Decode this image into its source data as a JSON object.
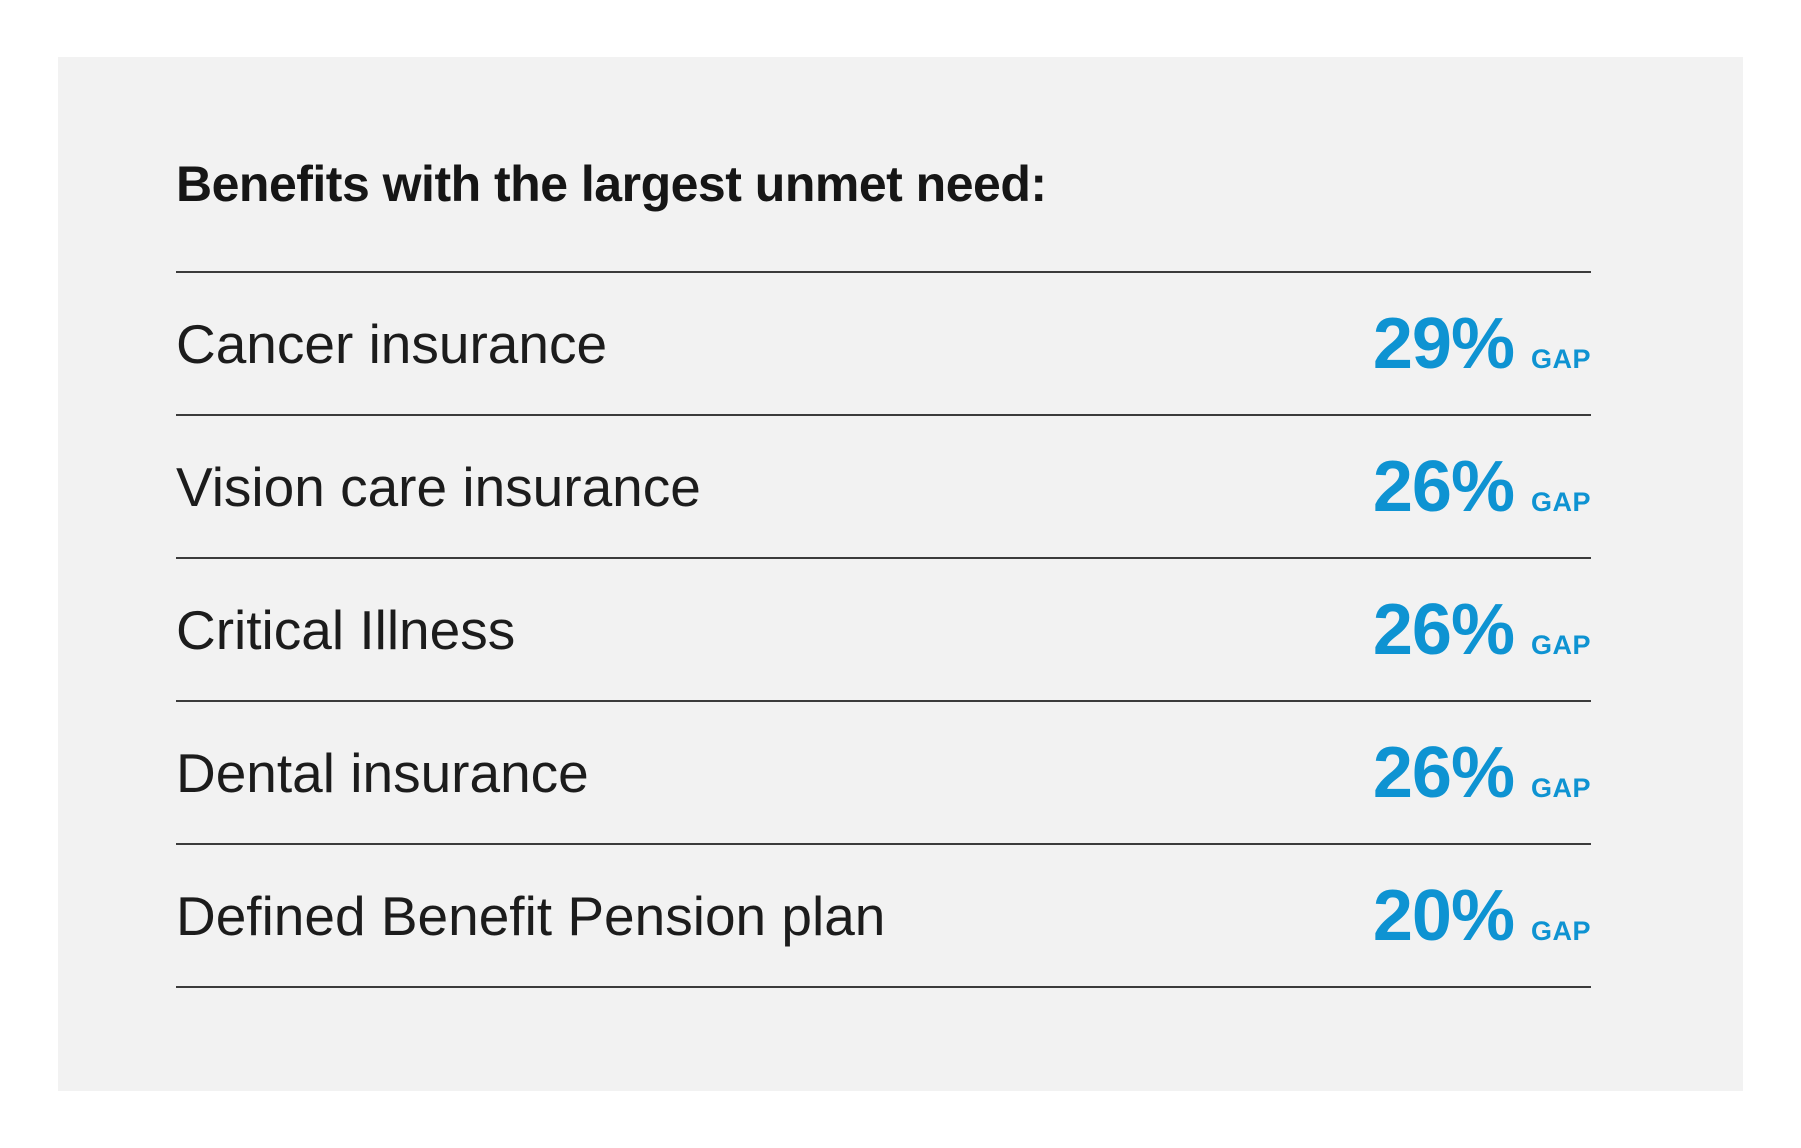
{
  "header": {
    "title": "Benefits with the largest unmet need:"
  },
  "rows": [
    {
      "label": "Cancer insurance",
      "value": "29%",
      "suffix": "GAP"
    },
    {
      "label": "Vision care insurance",
      "value": "26%",
      "suffix": "GAP"
    },
    {
      "label": "Critical Illness",
      "value": "26%",
      "suffix": "GAP"
    },
    {
      "label": "Dental insurance",
      "value": "26%",
      "suffix": "GAP"
    },
    {
      "label": "Defined Benefit Pension plan",
      "value": "20%",
      "suffix": "GAP"
    }
  ],
  "colors": {
    "page_background": "#ffffff",
    "panel_background": "#f2f2f2",
    "accent_blue": "#0e93d2",
    "text_dark": "#1c1c1c",
    "divider": "#3c3c3c"
  },
  "chart_data": {
    "type": "table",
    "title": "Benefits with the largest unmet need:",
    "categories": [
      "Cancer insurance",
      "Vision care insurance",
      "Critical Illness",
      "Dental insurance",
      "Defined Benefit Pension plan"
    ],
    "values": [
      29,
      26,
      26,
      26,
      20
    ],
    "value_unit": "% GAP",
    "legend_position": "none",
    "grid": "horizontal-row-dividers"
  }
}
